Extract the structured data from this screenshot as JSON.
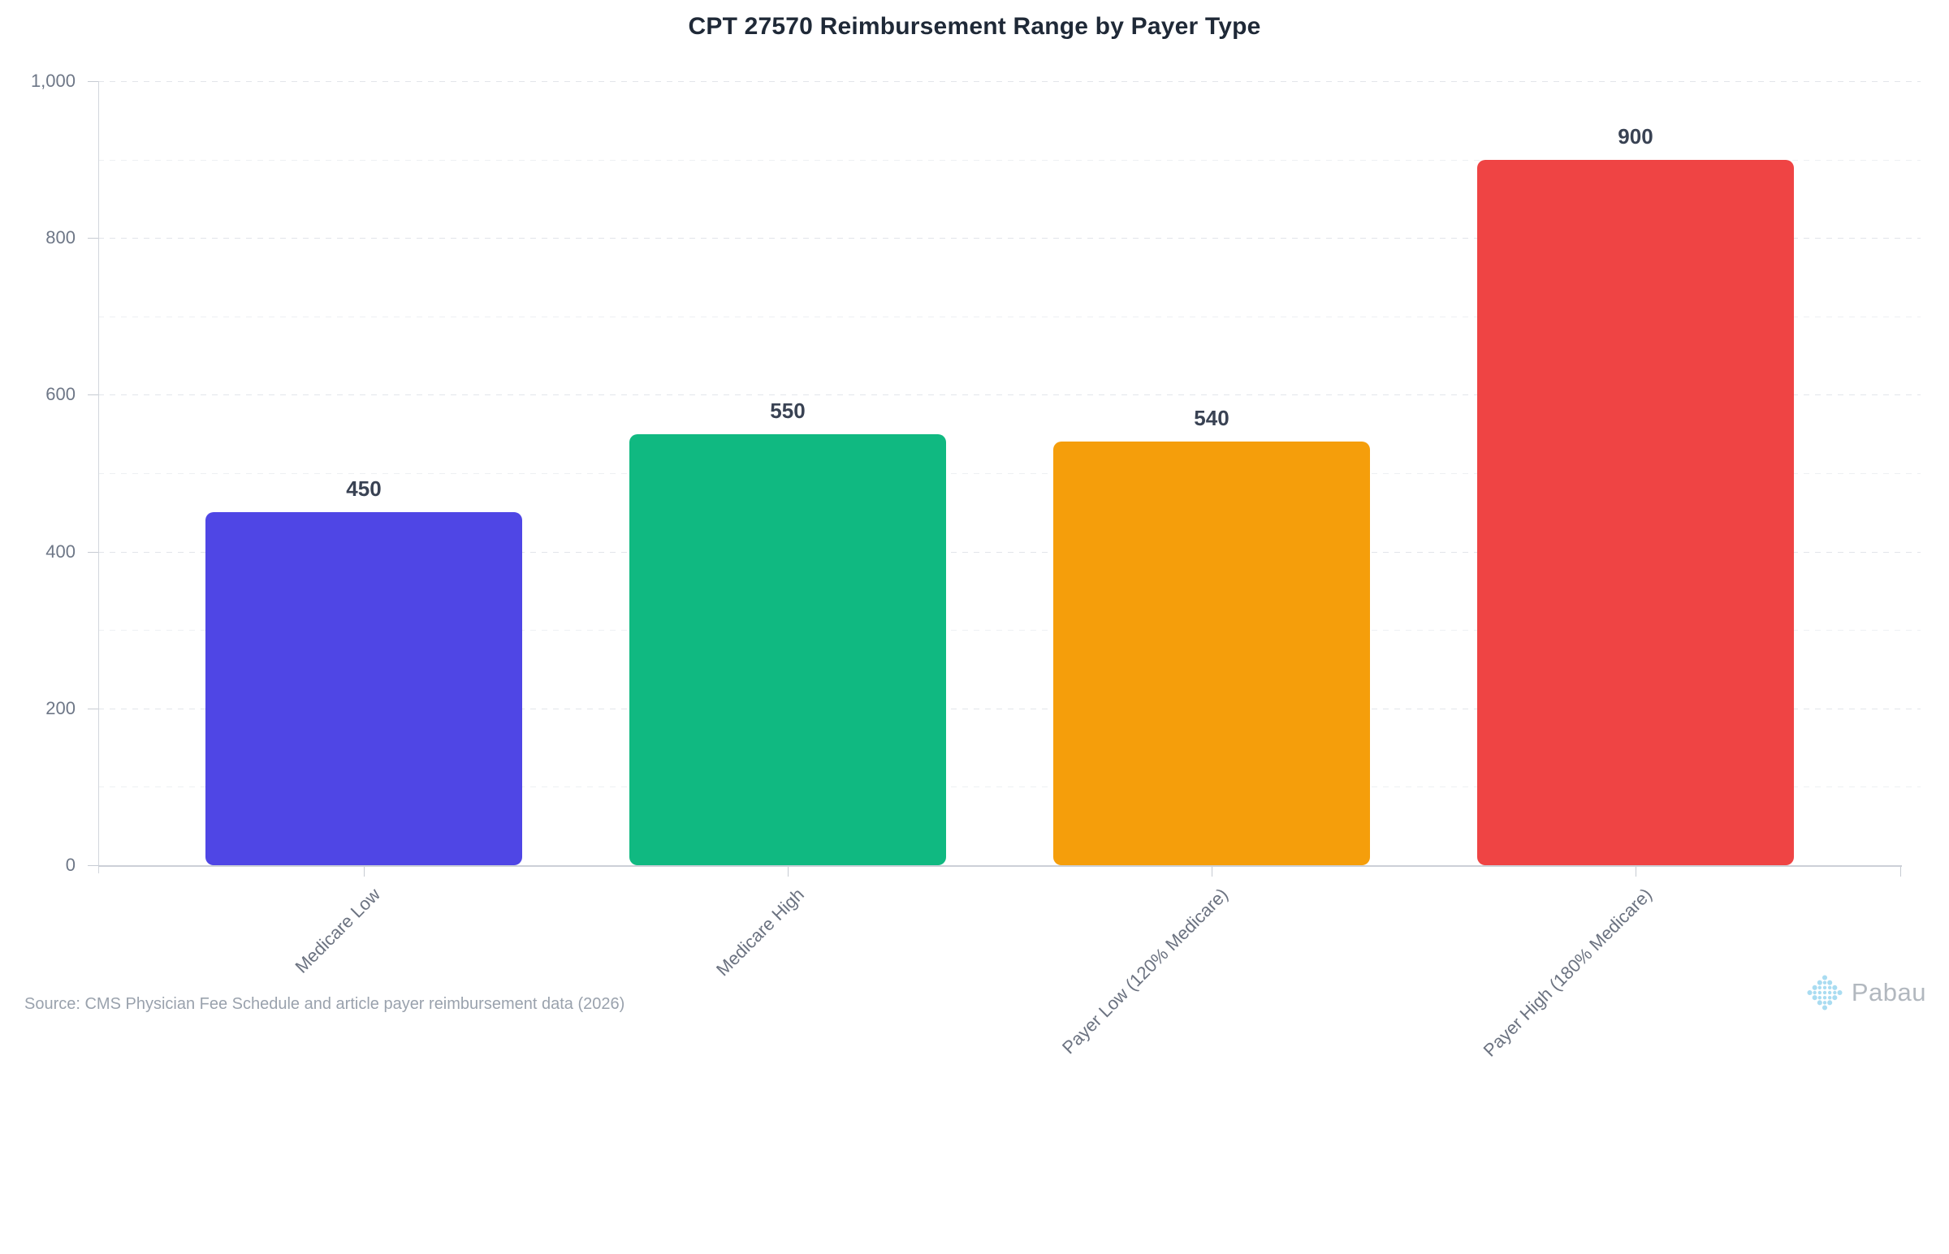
{
  "title": "CPT 27570 Reimbursement Range by Payer Type",
  "source_note": "Source: CMS Physician Fee Schedule and article payer reimbursement data (2026)",
  "branding": {
    "name": "Pabau",
    "icon_color": "#A9DCF1",
    "text_color": "#b2b8bf"
  },
  "chart_data": {
    "type": "bar",
    "title": "CPT 27570 Reimbursement Range by Payer Type",
    "categories": [
      "Medicare Low",
      "Medicare High",
      "Payer Low (120% Medicare)",
      "Payer High (180% Medicare)"
    ],
    "values": [
      450,
      550,
      540,
      900
    ],
    "value_labels": [
      "450",
      "550",
      "540",
      "900"
    ],
    "bar_colors": [
      "#4F46E5",
      "#10B981",
      "#F59E0B",
      "#EF4444"
    ],
    "xlabel": "",
    "ylabel": "",
    "ylim": [
      0,
      1000
    ],
    "y_ticks": [
      {
        "value": 0,
        "label": "0"
      },
      {
        "value": 200,
        "label": "200"
      },
      {
        "value": 400,
        "label": "400"
      },
      {
        "value": 600,
        "label": "600"
      },
      {
        "value": 800,
        "label": "800"
      },
      {
        "value": 1000,
        "label": "1,000"
      }
    ],
    "grid_step": 100,
    "grid": true,
    "grid_style": "dashed",
    "legend": "none",
    "x_label_rotation_deg": 45,
    "accent_text_color": "#394253",
    "axis_label_color": "#6b7280"
  }
}
